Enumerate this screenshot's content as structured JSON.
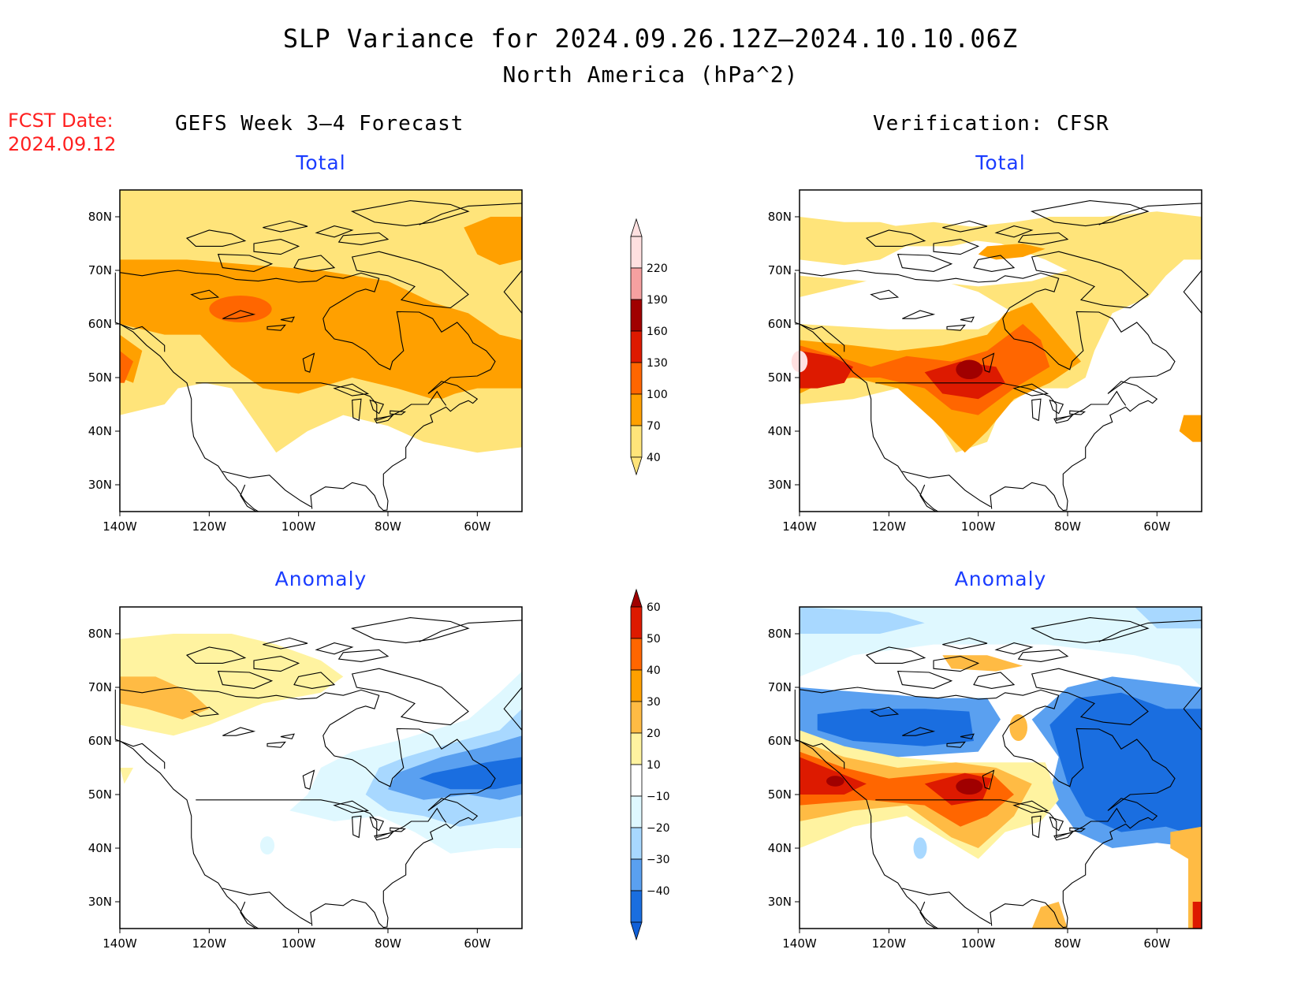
{
  "header": {
    "title": "SLP Variance for 2024.09.26.12Z–2024.10.10.06Z",
    "subtitle": "North America (hPa^2)"
  },
  "forecast_date": {
    "label": "FCST Date:",
    "value": "2024.09.12"
  },
  "columns": {
    "left": "GEFS Week 3–4 Forecast",
    "right": "Verification: CFSR"
  },
  "panel_titles": {
    "total": "Total",
    "anomaly": "Anomaly"
  },
  "axes": {
    "lat_labels": [
      "80N",
      "70N",
      "60N",
      "50N",
      "40N",
      "30N"
    ],
    "lon_labels": [
      "140W",
      "120W",
      "100W",
      "80W",
      "60W"
    ],
    "lon_range": [
      -140,
      -50
    ],
    "lat_range": [
      25,
      85
    ]
  },
  "colorbars": {
    "total": {
      "labels": [
        "220",
        "190",
        "160",
        "130",
        "100",
        "70",
        "40"
      ],
      "colors": [
        "#ffe0e0",
        "#f5a0a0",
        "#a00000",
        "#dd1a00",
        "#ff6600",
        "#ffa000",
        "#ffe47a"
      ]
    },
    "anomaly": {
      "labels": [
        "60",
        "50",
        "40",
        "30",
        "20",
        "10",
        "−10",
        "−20",
        "−30",
        "−40"
      ],
      "colors": [
        "#a00000",
        "#dd1a00",
        "#ff6600",
        "#ffa000",
        "#ffbb44",
        "#fff3a0",
        "#ffffff",
        "#dff8ff",
        "#a8d8ff",
        "#5aa0f0",
        "#1a6ee0",
        "#1060d8"
      ]
    }
  },
  "palette": {
    "t40": "#ffe47a",
    "t70": "#ffa000",
    "t100": "#ff6600",
    "t130": "#dd1a00",
    "t160": "#a00000",
    "a10": "#fff3a0",
    "a20": "#ffbb44",
    "a30": "#ffa000",
    "a40": "#ff6600",
    "a50": "#dd1a00",
    "a60": "#a00000",
    "n10": "#dff8ff",
    "n20": "#a8d8ff",
    "n30": "#5aa0f0",
    "n40": "#1a6ee0"
  }
}
